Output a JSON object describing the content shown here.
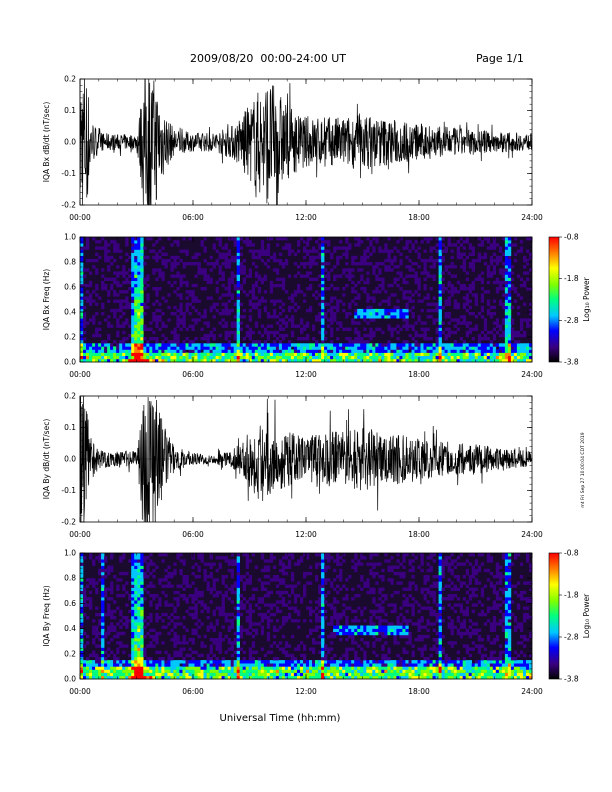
{
  "header": {
    "title": "2009/08/20  00:00-24:00 UT",
    "page": "Page 1/1"
  },
  "side_note": "mt Fri Sep 27 10:00:04 CDT 2019",
  "colors": {
    "trace": "#000000",
    "spectrogram_background": "#1a0a2e",
    "colorscale": [
      "#000000",
      "#3a0080",
      "#0000ff",
      "#00c8ff",
      "#00ff80",
      "#80ff00",
      "#ffff00",
      "#ff8000",
      "#ff0000"
    ]
  },
  "chart_data": [
    {
      "type": "line",
      "id": "bx-ts",
      "ylabel": "IQA Bx dB/dt (nT/sec)",
      "xlim": [
        "00:00",
        "24:00"
      ],
      "ylim": [
        -0.2,
        0.2
      ],
      "x_ticks": [
        "00:00",
        "06:00",
        "12:00",
        "18:00",
        "24:00"
      ],
      "y_ticks": [
        "-0.2",
        "-0.1",
        "0.0",
        "0.1",
        "0.2"
      ],
      "y_tick_values": [
        -0.2,
        -0.1,
        0.0,
        0.1,
        0.2
      ],
      "envelope": {
        "hours": [
          0,
          0.3,
          0.6,
          1,
          2,
          3,
          3.5,
          4,
          4.5,
          5,
          6,
          7,
          8,
          8.5,
          9,
          9.5,
          10,
          10.5,
          11,
          11.5,
          12,
          13,
          14,
          15,
          16,
          17,
          18,
          19,
          20,
          21,
          22,
          23,
          24
        ],
        "amplitude": [
          0.25,
          0.25,
          0.08,
          0.03,
          0.025,
          0.025,
          0.25,
          0.2,
          0.1,
          0.04,
          0.03,
          0.03,
          0.05,
          0.08,
          0.12,
          0.17,
          0.2,
          0.17,
          0.12,
          0.09,
          0.08,
          0.08,
          0.08,
          0.09,
          0.08,
          0.07,
          0.06,
          0.05,
          0.045,
          0.04,
          0.035,
          0.03,
          0.025
        ]
      }
    },
    {
      "type": "heatmap",
      "id": "bx-spec",
      "ylabel": "IQA Bx Freq (Hz)",
      "xlim": [
        "00:00",
        "24:00"
      ],
      "ylim": [
        0.0,
        1.0
      ],
      "x_ticks": [
        "00:00",
        "06:00",
        "12:00",
        "18:00",
        "24:00"
      ],
      "y_ticks": [
        "0.0",
        "0.2",
        "0.4",
        "0.6",
        "0.8",
        "1.0"
      ],
      "y_tick_values": [
        0.0,
        0.2,
        0.4,
        0.6,
        0.8,
        1.0
      ],
      "colorbar": {
        "label": "Log₁₀ Power",
        "ticks": [
          "-0.8",
          "-1.8",
          "-2.8",
          "-3.8"
        ],
        "tick_values": [
          -0.8,
          -1.8,
          -2.8,
          -3.8
        ],
        "range": [
          -3.8,
          -0.8
        ]
      },
      "features": {
        "vertical_bursts_hours": [
          0.1,
          2.9,
          3.2,
          8.4,
          12.9,
          19.1,
          22.7
        ],
        "low_freq_band_hz": [
          0.0,
          0.08
        ],
        "enhanced_patch": {
          "hours": [
            14.5,
            17.5
          ],
          "freq_hz": [
            0.35,
            0.42
          ]
        }
      }
    },
    {
      "type": "line",
      "id": "by-ts",
      "ylabel": "IQA By dB/dt (nT/sec)",
      "xlim": [
        "00:00",
        "24:00"
      ],
      "ylim": [
        -0.2,
        0.2
      ],
      "x_ticks": [
        "00:00",
        "06:00",
        "12:00",
        "18:00",
        "24:00"
      ],
      "y_ticks": [
        "-0.2",
        "-0.1",
        "0.0",
        "0.1",
        "0.2"
      ],
      "y_tick_values": [
        -0.2,
        -0.1,
        0.0,
        0.1,
        0.2
      ],
      "envelope": {
        "hours": [
          0,
          0.3,
          0.6,
          1,
          2,
          3,
          3.5,
          4,
          4.5,
          5,
          6,
          7,
          8,
          8.5,
          9,
          9.5,
          10,
          10.5,
          11,
          11.5,
          12,
          13,
          14,
          15,
          16,
          17,
          18,
          19,
          20,
          21,
          22,
          23,
          24
        ],
        "amplitude": [
          0.22,
          0.18,
          0.07,
          0.03,
          0.025,
          0.025,
          0.25,
          0.22,
          0.1,
          0.04,
          0.02,
          0.015,
          0.025,
          0.05,
          0.09,
          0.11,
          0.12,
          0.1,
          0.09,
          0.08,
          0.07,
          0.09,
          0.09,
          0.1,
          0.09,
          0.08,
          0.07,
          0.06,
          0.05,
          0.05,
          0.04,
          0.03,
          0.025
        ]
      }
    },
    {
      "type": "heatmap",
      "id": "by-spec",
      "ylabel": "IQA By Freq (Hz)",
      "xlim": [
        "00:00",
        "24:00"
      ],
      "ylim": [
        0.0,
        1.0
      ],
      "x_ticks": [
        "00:00",
        "06:00",
        "12:00",
        "18:00",
        "24:00"
      ],
      "y_ticks": [
        "0.0",
        "0.2",
        "0.4",
        "0.6",
        "0.8",
        "1.0"
      ],
      "y_tick_values": [
        0.0,
        0.2,
        0.4,
        0.6,
        0.8,
        1.0
      ],
      "colorbar": {
        "label": "Log₁₀ Power",
        "ticks": [
          "-0.8",
          "-1.8",
          "-2.8",
          "-3.8"
        ],
        "tick_values": [
          -0.8,
          -1.8,
          -2.8,
          -3.8
        ],
        "range": [
          -3.8,
          -0.8
        ]
      },
      "features": {
        "vertical_bursts_hours": [
          0.1,
          1.2,
          2.9,
          3.2,
          8.4,
          12.9,
          19.1,
          22.7
        ],
        "low_freq_band_hz": [
          0.0,
          0.1
        ],
        "enhanced_patch": {
          "hours": [
            13.5,
            17.5
          ],
          "freq_hz": [
            0.35,
            0.42
          ]
        }
      }
    }
  ],
  "xlabel": "Universal Time (hh:mm)"
}
